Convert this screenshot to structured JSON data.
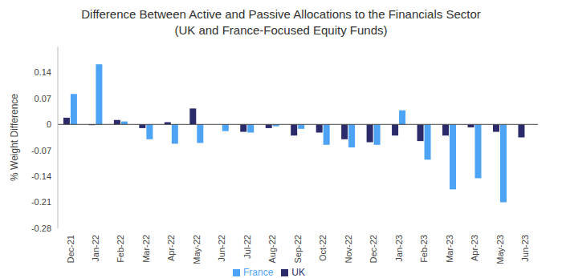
{
  "chart_data": {
    "type": "bar",
    "title": "Difference Between Active and Passive Allocations to the Financials Sector",
    "subtitle": "(UK and France-Focused Equity Funds)",
    "y_label": "% Weight Difference",
    "categories": [
      "Dec-21",
      "Jan-22",
      "Feb-22",
      "Mar-22",
      "Apr-22",
      "May-22",
      "Jun-22",
      "Jul-22",
      "Aug-22",
      "Sep-22",
      "Oct-22",
      "Nov-22",
      "Dec-22",
      "Jan-23",
      "Feb-23",
      "Mar-23",
      "Apr-23",
      "May-23",
      "Jun-23"
    ],
    "series": [
      {
        "name": "UK",
        "color": "#2b2a6b",
        "values": [
          0.018,
          -0.002,
          0.012,
          -0.01,
          0.006,
          0.043,
          0,
          -0.02,
          -0.01,
          -0.03,
          -0.022,
          -0.04,
          -0.048,
          -0.03,
          -0.045,
          -0.03,
          -0.008,
          -0.02,
          -0.035
        ]
      },
      {
        "name": "France",
        "color": "#4da3f5",
        "values": [
          0.082,
          0.162,
          0.008,
          -0.04,
          -0.052,
          -0.05,
          -0.018,
          -0.022,
          -0.005,
          -0.012,
          -0.055,
          -0.062,
          -0.055,
          0.038,
          -0.095,
          -0.175,
          -0.145,
          -0.21,
          null
        ]
      }
    ],
    "ylim": [
      -0.28,
      0.21
    ],
    "yticks": [
      -0.28,
      -0.21,
      -0.14,
      -0.07,
      0,
      0.07,
      0.14
    ],
    "grid": false,
    "legend": "bottom"
  }
}
